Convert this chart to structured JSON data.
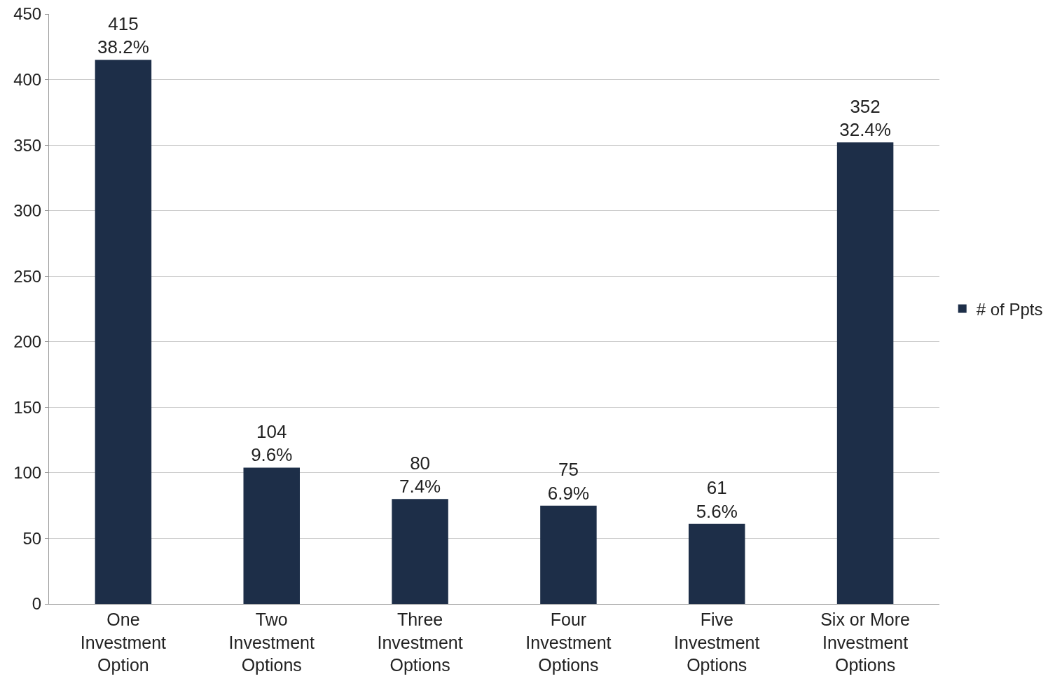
{
  "chart_data": {
    "type": "bar",
    "categories": [
      "One Investment Option",
      "Two Investment Options",
      "Three Investment Options",
      "Four Investment Options",
      "Five Investment Options",
      "Six or More Investment Options"
    ],
    "series": [
      {
        "name": "# of Ppts",
        "color": "#1d2e48",
        "values": [
          415,
          104,
          80,
          75,
          61,
          352
        ],
        "value_labels": [
          "415\n38.2%",
          "104\n9.6%",
          "80\n7.4%",
          "75\n6.9%",
          "61\n5.6%",
          "352\n32.4%"
        ]
      }
    ],
    "ylim": [
      0,
      450
    ],
    "yticks": [
      0,
      50,
      100,
      150,
      200,
      250,
      300,
      350,
      400,
      450
    ],
    "grid": "y",
    "legend": "right"
  }
}
